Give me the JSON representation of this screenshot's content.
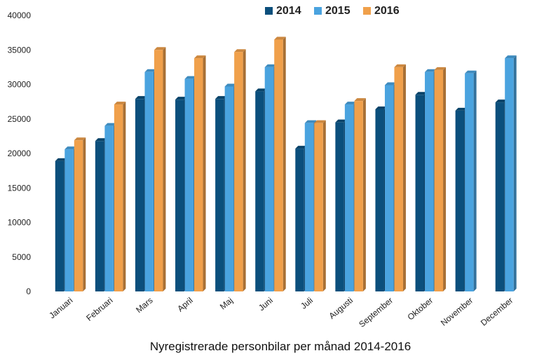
{
  "chart_data": {
    "type": "bar",
    "title": "Nyregistrerade personbilar per månad 2014-2016",
    "xlabel": "",
    "ylabel": "",
    "ylim": [
      0,
      40000
    ],
    "yticks": [
      0,
      5000,
      10000,
      15000,
      20000,
      25000,
      30000,
      35000,
      40000
    ],
    "grid": false,
    "legend_position": "top-center",
    "categories": [
      "Januari",
      "Februari",
      "Mars",
      "April",
      "Maj",
      "Juni",
      "Juli",
      "Augusti",
      "September",
      "Oktober",
      "November",
      "December"
    ],
    "series": [
      {
        "name": "2014",
        "color": "#0b4f7c",
        "values": [
          18900,
          21800,
          27900,
          27800,
          27900,
          29000,
          20700,
          24500,
          26400,
          28500,
          26200,
          27400
        ]
      },
      {
        "name": "2015",
        "color": "#4aa3df",
        "values": [
          20600,
          24000,
          31800,
          30800,
          29700,
          32500,
          24400,
          27100,
          29900,
          31800,
          31600,
          33800
        ]
      },
      {
        "name": "2016",
        "color": "#f0a04b",
        "values": [
          21900,
          27100,
          35000,
          33800,
          34700,
          36500,
          24400,
          27600,
          32500,
          32100,
          null,
          null
        ]
      }
    ]
  }
}
